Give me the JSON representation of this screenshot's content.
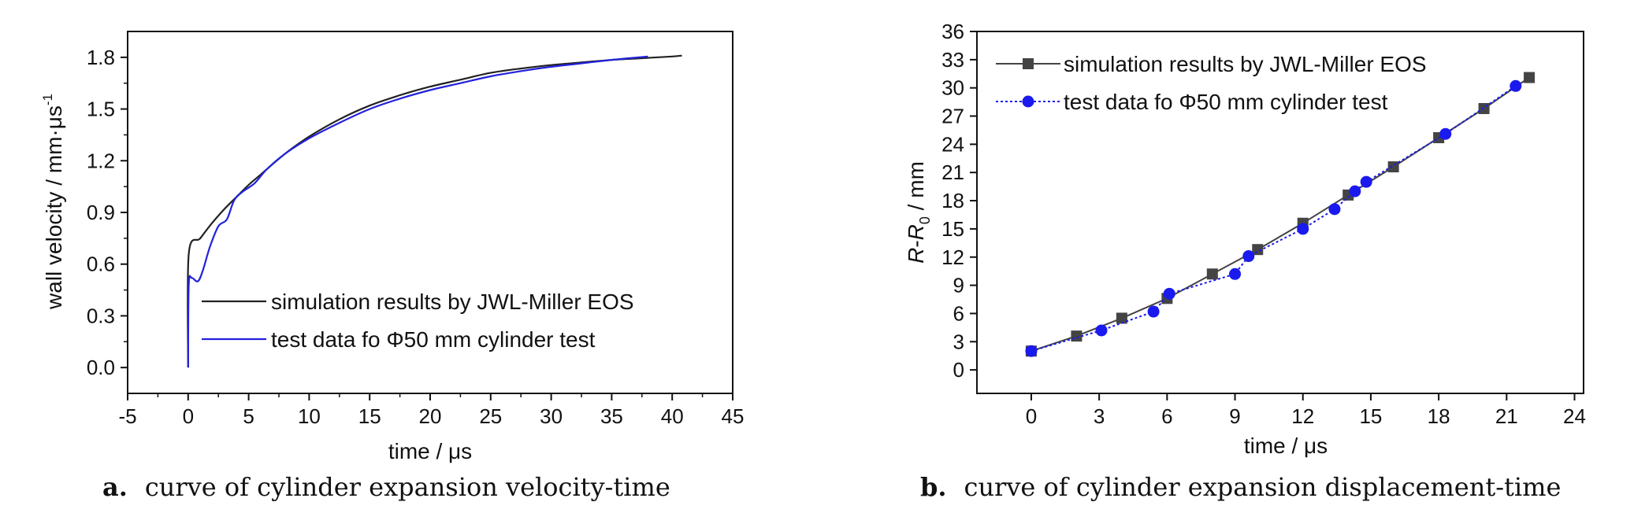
{
  "figure": {
    "caption_a_label": "a.",
    "caption_a_text": "curve of cylinder expansion velocity-time",
    "caption_b_label": "b.",
    "caption_b_text": "curve of cylinder expansion displacement-time"
  },
  "chart_data": [
    {
      "type": "line",
      "title": "",
      "xlabel": "time / μs",
      "ylabel": "wall velocity / mm·μs-1",
      "xlim": [
        -5,
        45
      ],
      "ylim": [
        -0.15,
        1.95
      ],
      "xticks": [
        -5,
        0,
        5,
        10,
        15,
        20,
        25,
        30,
        35,
        40,
        45
      ],
      "yticks": [
        0.0,
        0.3,
        0.6,
        0.9,
        1.2,
        1.5,
        1.8
      ],
      "ytick_labels": [
        "0.0",
        "0.3",
        "0.6",
        "0.9",
        "1.2",
        "1.5",
        "1.8"
      ],
      "grid": false,
      "legend_position": "lower-right",
      "series": [
        {
          "name": "simulation results by JWL-Miller EOS",
          "color": "#222222",
          "x": [
            0,
            0.05,
            1,
            2,
            3,
            4,
            5,
            6,
            8,
            10,
            12.5,
            15,
            17.5,
            20,
            22.5,
            25,
            27.5,
            30,
            32.5,
            35,
            37.5,
            40,
            40.8
          ],
          "y": [
            0.0,
            0.66,
            0.75,
            0.84,
            0.92,
            0.99,
            1.06,
            1.12,
            1.24,
            1.34,
            1.44,
            1.52,
            1.58,
            1.63,
            1.67,
            1.71,
            1.735,
            1.755,
            1.77,
            1.785,
            1.795,
            1.805,
            1.81
          ]
        },
        {
          "name": "test data fo Φ50 mm cylinder test",
          "color": "#2222dd",
          "x": [
            0,
            0.05,
            0.3,
            0.8,
            1.2,
            1.8,
            2.5,
            3.2,
            3.8,
            4.5,
            5.5,
            6.5,
            8,
            10,
            12.5,
            15,
            17.5,
            20,
            22.5,
            25,
            27.5,
            30,
            32.5,
            35,
            38
          ],
          "y": [
            0.0,
            0.48,
            0.52,
            0.5,
            0.56,
            0.7,
            0.82,
            0.86,
            0.97,
            1.02,
            1.07,
            1.15,
            1.24,
            1.33,
            1.42,
            1.5,
            1.56,
            1.61,
            1.65,
            1.69,
            1.72,
            1.745,
            1.765,
            1.785,
            1.805
          ]
        }
      ]
    },
    {
      "type": "line",
      "title": "",
      "xlabel": "time / μs",
      "ylabel": "R-R0 / mm",
      "xlim": [
        -2.4,
        24.4
      ],
      "ylim": [
        -2.5,
        36
      ],
      "xticks": [
        0,
        3,
        6,
        9,
        12,
        15,
        18,
        21,
        24
      ],
      "yticks": [
        0,
        3,
        6,
        9,
        12,
        15,
        18,
        21,
        24,
        27,
        30,
        33,
        36
      ],
      "grid": false,
      "legend_position": "top-left",
      "series": [
        {
          "name": "simulation results by JWL-Miller EOS",
          "color": "#444444",
          "marker": "square",
          "x": [
            0,
            2,
            4,
            6,
            8,
            10,
            12,
            14,
            16,
            18,
            20,
            22
          ],
          "y": [
            2.0,
            3.6,
            5.5,
            7.6,
            10.2,
            12.8,
            15.6,
            18.6,
            21.6,
            24.7,
            27.8,
            31.1
          ]
        },
        {
          "name": "test data fo Φ50 mm cylinder test",
          "color": "#1a1aee",
          "marker": "circle",
          "x": [
            0,
            3.1,
            5.4,
            6.1,
            9.0,
            9.6,
            12.0,
            13.4,
            14.3,
            14.8,
            18.3,
            21.4
          ],
          "y": [
            2.0,
            4.2,
            6.2,
            8.1,
            10.2,
            12.1,
            15.0,
            17.1,
            19.0,
            20.0,
            25.1,
            30.2
          ]
        }
      ]
    }
  ]
}
